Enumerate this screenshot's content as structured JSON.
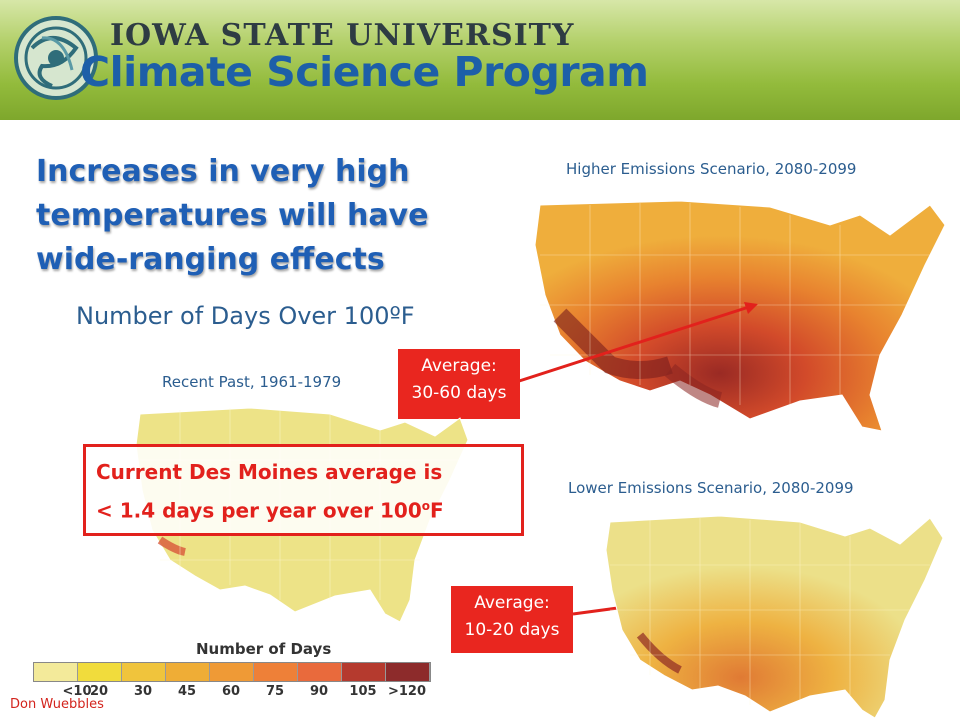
{
  "banner": {
    "university": "IOWA STATE UNIVERSITY",
    "program": "Climate Science Program",
    "colors": {
      "green": "#93bb3c",
      "blue": "#1d5fa8"
    }
  },
  "headline": "Increases in very high temperatures will have wide-ranging effects",
  "subtitle": "Number of Days Over 100ºF",
  "maps": {
    "recent": {
      "caption": "Recent Past, 1961-1979"
    },
    "higher": {
      "caption": "Higher Emissions Scenario, 2080-2099",
      "callout_line1": "Average:",
      "callout_line2": "30-60 days"
    },
    "lower": {
      "caption": "Lower Emissions Scenario, 2080-2099",
      "callout_line1": "Average:",
      "callout_line2": "10-20 days"
    }
  },
  "des_moines": {
    "line1": "Current Des Moines average is",
    "line2_prefix": "< 1.4 days per year over 100",
    "line2_sup": "o",
    "line2_suffix": "F"
  },
  "legend": {
    "title": "Number of Days",
    "labels": [
      "<10",
      "20",
      "30",
      "45",
      "60",
      "75",
      "90",
      "105",
      ">120"
    ],
    "colors": [
      "#f3ea9a",
      "#f1dc3c",
      "#f0c43c",
      "#efad36",
      "#ef9a36",
      "#ee8038",
      "#e96a3c",
      "#b53a2e",
      "#8d2b2b"
    ]
  },
  "credit": "Don Wuebbles"
}
